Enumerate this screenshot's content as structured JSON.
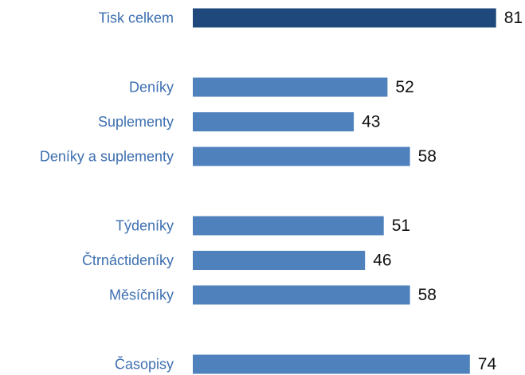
{
  "chart_data": {
    "type": "bar",
    "orientation": "horizontal",
    "categories": [
      "Tisk celkem",
      "",
      "Deníky",
      "Suplementy",
      "Deníky a suplementy",
      "",
      "Týdeníky",
      "Čtrnáctideníky",
      "Měsíčníky",
      "",
      "Časopisy"
    ],
    "values": [
      81,
      null,
      52,
      43,
      58,
      null,
      51,
      46,
      58,
      null,
      74
    ],
    "value_labels": [
      "81",
      "",
      "52",
      "43",
      "58",
      "",
      "51",
      "46",
      "58",
      "",
      "74"
    ],
    "highlight_index": 0,
    "xlim": [
      0,
      100
    ],
    "grid": false,
    "legend": "none",
    "title": "",
    "xlabel": "",
    "ylabel": ""
  },
  "colors": {
    "highlight_bar": "#1f497d",
    "bar": "#4f81bd",
    "category_text": "#3d6fb0",
    "value_text": "#111111"
  }
}
